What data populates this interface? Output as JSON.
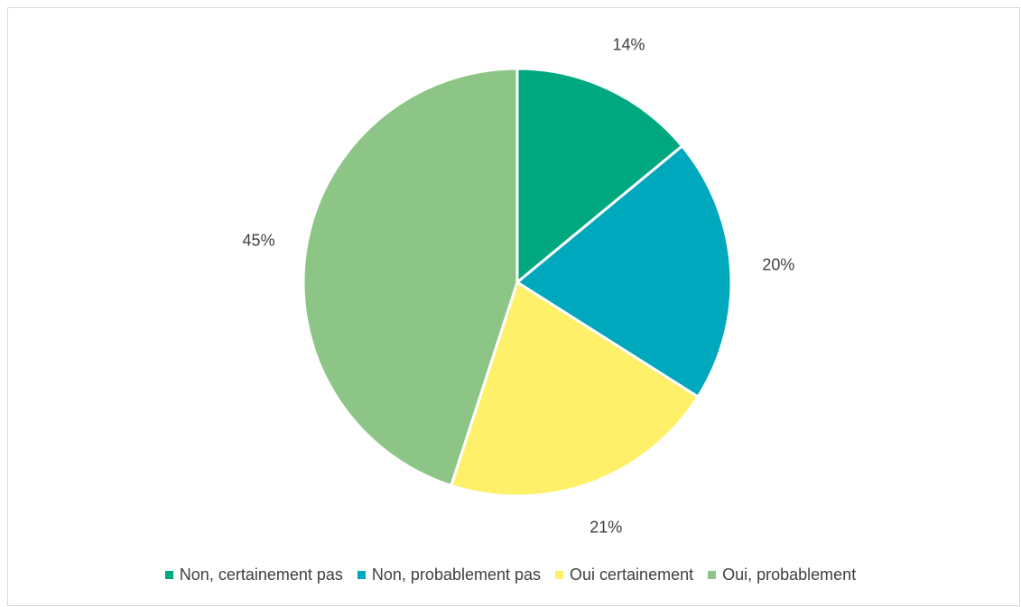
{
  "chart_data": {
    "type": "pie",
    "title": "",
    "categories": [
      "Non, certainement pas",
      "Non, probablement pas",
      "Oui certainement",
      "Oui, probablement"
    ],
    "values": [
      14,
      20,
      21,
      45
    ],
    "labels": [
      "14%",
      "20%",
      "21%",
      "45%"
    ],
    "colors": [
      "#00a880",
      "#00a8be",
      "#fff06a",
      "#8dc587"
    ],
    "legend_position": "bottom"
  }
}
